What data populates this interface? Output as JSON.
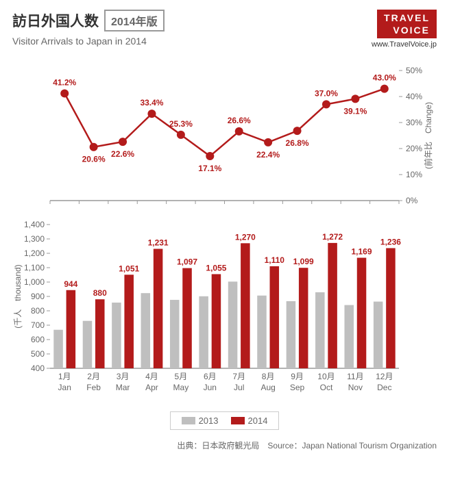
{
  "header": {
    "title": "訪日外国人数",
    "year_badge": "2014年版",
    "subtitle": "Visitor Arrivals to Japan in 2014",
    "logo_line1": "TRAVEL",
    "logo_line2": "VOICE",
    "url": "www.TravelVoice.jp"
  },
  "months": [
    {
      "jp": "1月",
      "en": "Jan"
    },
    {
      "jp": "2月",
      "en": "Feb"
    },
    {
      "jp": "3月",
      "en": "Mar"
    },
    {
      "jp": "4月",
      "en": "Apr"
    },
    {
      "jp": "5月",
      "en": "May"
    },
    {
      "jp": "6月",
      "en": "Jun"
    },
    {
      "jp": "7月",
      "en": "Jul"
    },
    {
      "jp": "8月",
      "en": "Aug"
    },
    {
      "jp": "9月",
      "en": "Sep"
    },
    {
      "jp": "10月",
      "en": "Oct"
    },
    {
      "jp": "11月",
      "en": "Nov"
    },
    {
      "jp": "12月",
      "en": "Dec"
    }
  ],
  "line_chart": {
    "type": "line",
    "values": [
      41.2,
      20.6,
      22.6,
      33.4,
      25.3,
      17.1,
      26.6,
      22.4,
      26.8,
      37.0,
      39.1,
      43.0
    ],
    "label_positions": [
      "above",
      "below",
      "below",
      "above",
      "above",
      "below",
      "above",
      "below",
      "below",
      "above",
      "below",
      "above"
    ],
    "ylim": [
      0,
      50
    ],
    "ytick_step": 10,
    "y_axis_label": "(前年比　Change)",
    "line_color": "#b31b1b",
    "marker_color": "#b31b1b",
    "marker_size": 6,
    "line_width": 2.5,
    "bg": "#ffffff",
    "axis_color": "#999"
  },
  "bar_chart": {
    "type": "grouped-bar",
    "series": [
      {
        "name": "2013",
        "color": "#bfbfbf",
        "values": [
          668,
          730,
          857,
          923,
          876,
          901,
          1003,
          906,
          867,
          929,
          840,
          864
        ]
      },
      {
        "name": "2014",
        "color": "#b31b1b",
        "values": [
          944,
          880,
          1051,
          1231,
          1097,
          1055,
          1270,
          1110,
          1099,
          1272,
          1169,
          1236
        ]
      }
    ],
    "data_labels": [
      944,
      880,
      1051,
      1231,
      1097,
      1055,
      1270,
      1110,
      1099,
      1272,
      1169,
      1236
    ],
    "ylim": [
      400,
      1400
    ],
    "ytick_step": 100,
    "y_axis_label": "(千人　thousand)",
    "bar_gap": 0.15,
    "group_gap": 0.25,
    "axis_color": "#999"
  },
  "legend": [
    {
      "label": "2013",
      "color": "#bfbfbf"
    },
    {
      "label": "2014",
      "color": "#b31b1b"
    }
  ],
  "source": "出典：日本政府観光局　Source：Japan National Tourism Organization"
}
